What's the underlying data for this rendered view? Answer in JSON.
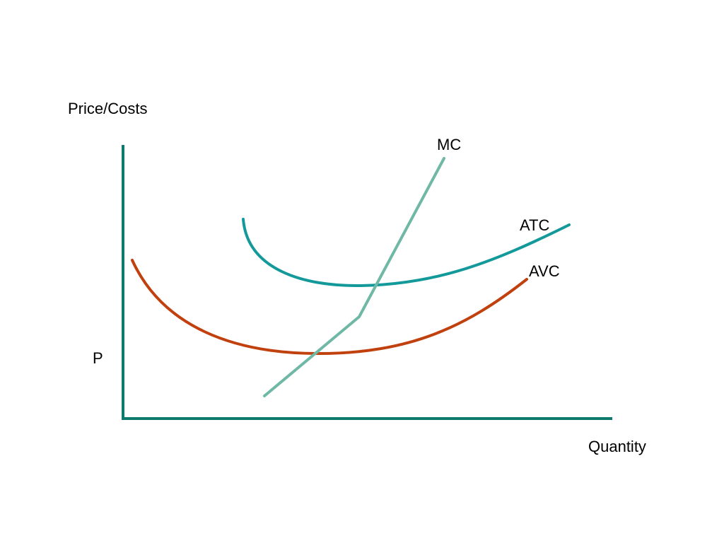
{
  "axes": {
    "y_label": "Price/Costs",
    "x_label": "Quantity",
    "price_marker": "P"
  },
  "curves": [
    {
      "label": "MC"
    },
    {
      "label": "ATC"
    },
    {
      "label": "AVC"
    }
  ]
}
